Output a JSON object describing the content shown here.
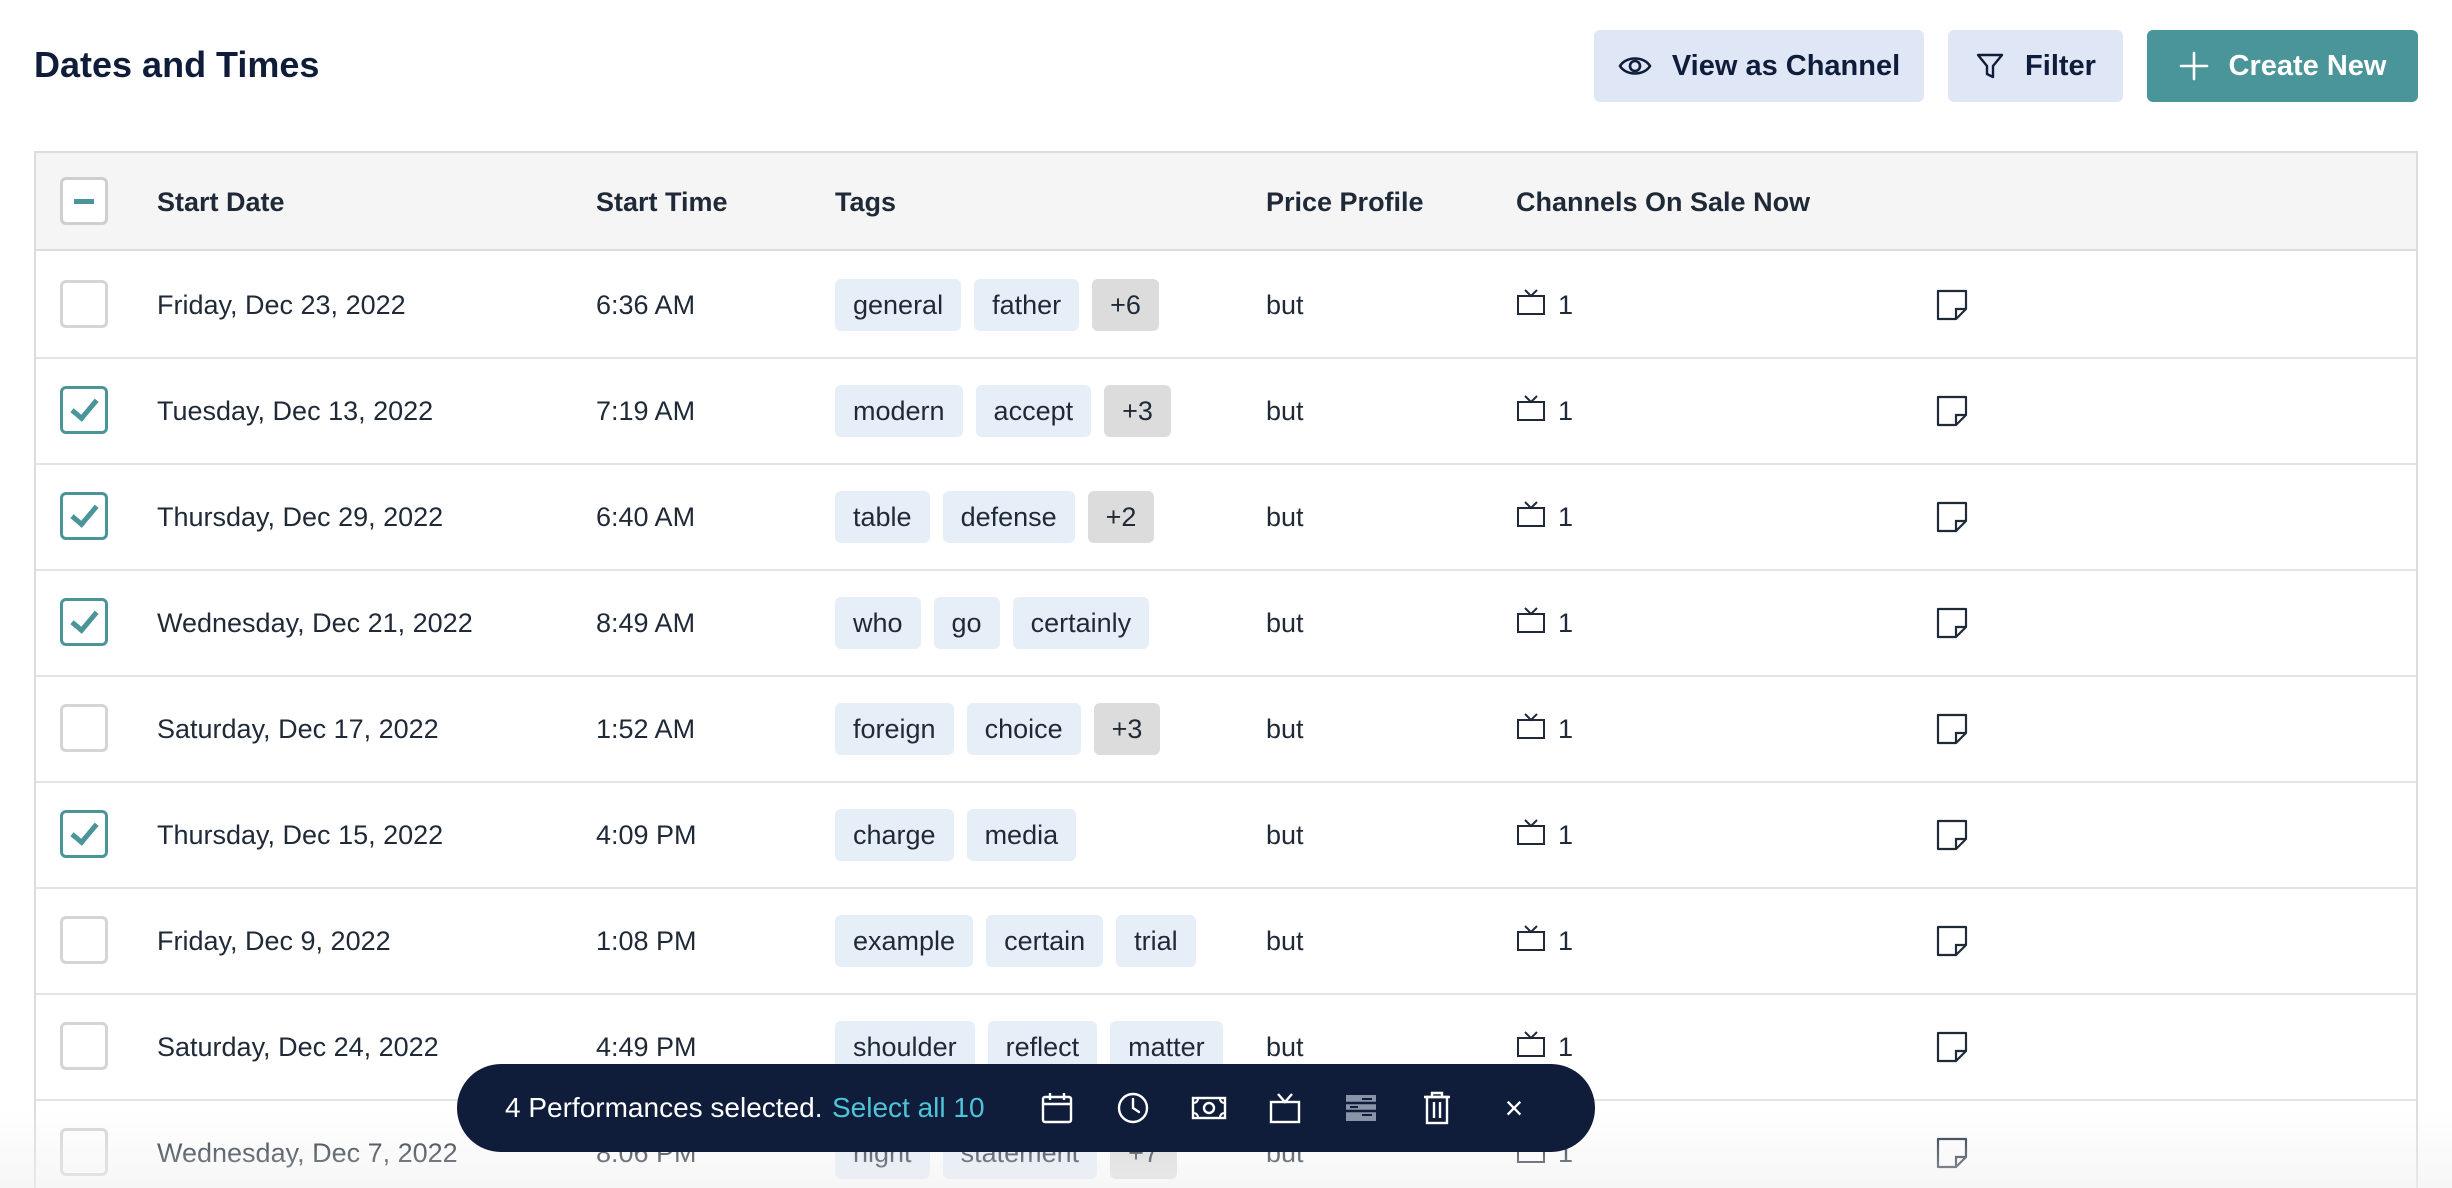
{
  "page": {
    "title": "Dates and Times",
    "buttons": {
      "view_as_channel": "View as Channel",
      "filter": "Filter",
      "create_new": "Create New"
    }
  },
  "table": {
    "columns": [
      "Start Date",
      "Start Time",
      "Tags",
      "Price Profile",
      "Channels On Sale Now"
    ],
    "header_checkbox_state": "indeterminate",
    "rows": [
      {
        "checked": false,
        "date": "Friday, Dec 23, 2022",
        "time": "6:36 AM",
        "tags": [
          "general",
          "father",
          "+6"
        ],
        "price": "but",
        "channels": "1"
      },
      {
        "checked": true,
        "date": "Tuesday, Dec 13, 2022",
        "time": "7:19 AM",
        "tags": [
          "modern",
          "accept",
          "+3"
        ],
        "price": "but",
        "channels": "1"
      },
      {
        "checked": true,
        "date": "Thursday, Dec 29, 2022",
        "time": "6:40 AM",
        "tags": [
          "table",
          "defense",
          "+2"
        ],
        "price": "but",
        "channels": "1"
      },
      {
        "checked": true,
        "date": "Wednesday, Dec 21, 2022",
        "time": "8:49 AM",
        "tags": [
          "who",
          "go",
          "certainly"
        ],
        "price": "but",
        "channels": "1"
      },
      {
        "checked": false,
        "date": "Saturday, Dec 17, 2022",
        "time": "1:52 AM",
        "tags": [
          "foreign",
          "choice",
          "+3"
        ],
        "price": "but",
        "channels": "1"
      },
      {
        "checked": true,
        "date": "Thursday, Dec 15, 2022",
        "time": "4:09 PM",
        "tags": [
          "charge",
          "media"
        ],
        "price": "but",
        "channels": "1"
      },
      {
        "checked": false,
        "date": "Friday, Dec 9, 2022",
        "time": "1:08 PM",
        "tags": [
          "example",
          "certain",
          "trial"
        ],
        "price": "but",
        "channels": "1"
      },
      {
        "checked": false,
        "date": "Saturday, Dec 24, 2022",
        "time": "4:49 PM",
        "tags": [
          "shoulder",
          "reflect",
          "matter"
        ],
        "price": "but",
        "channels": "1"
      },
      {
        "checked": false,
        "date": "Wednesday, Dec 7, 2022",
        "time": "8:06 PM",
        "tags": [
          "night",
          "statement",
          "+7"
        ],
        "price": "but",
        "channels": "1"
      }
    ]
  },
  "action_bar": {
    "selected_text": "4 Performances selected.",
    "select_all": "Select all 10",
    "icons": [
      "calendar-icon",
      "clock-icon",
      "money-icon",
      "channel-icon",
      "price-profile-icon",
      "trash-icon"
    ],
    "close": "×"
  },
  "colors": {
    "accent": "#4a9599",
    "navy": "#0f1d3a",
    "light_button": "#dfe6f5",
    "tag_bg": "#e6eef8",
    "tag_more_bg": "#dcdcdc",
    "link": "#4fc3d8"
  }
}
